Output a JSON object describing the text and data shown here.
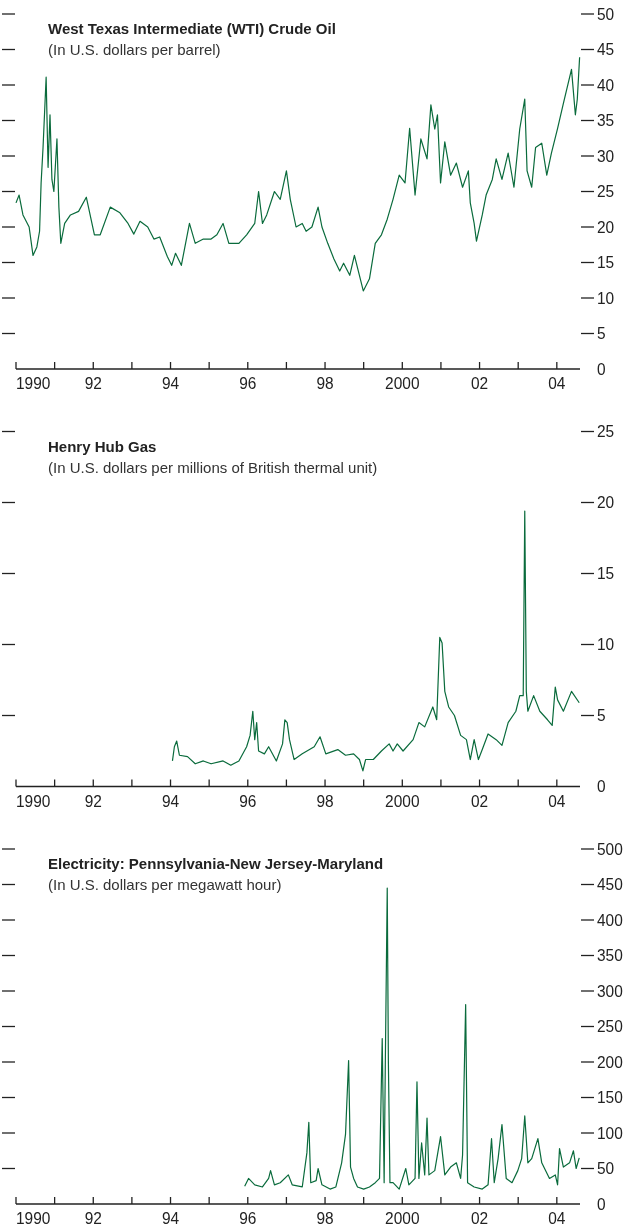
{
  "chart_data": [
    {
      "type": "line",
      "title": "West Texas Intermediate (WTI) Crude Oil",
      "subtitle": "(In U.S. dollars per barrel)",
      "color": "#0a6b3c",
      "x": [
        1990,
        1990.08,
        1990.18,
        1990.34,
        1990.44,
        1990.54,
        1990.61,
        1990.65,
        1990.7,
        1990.78,
        1990.83,
        1990.88,
        1990.93,
        1990.98,
        1991.06,
        1991.11,
        1991.16,
        1991.26,
        1991.41,
        1991.62,
        1991.82,
        1992.03,
        1992.18,
        1992.44,
        1992.69,
        1992.9,
        1993.05,
        1993.21,
        1993.41,
        1993.57,
        1993.72,
        1993.92,
        1994.03,
        1994.13,
        1994.28,
        1994.49,
        1994.64,
        1994.85,
        1995.05,
        1995.2,
        1995.36,
        1995.51,
        1995.77,
        1995.97,
        1996.18,
        1996.28,
        1996.38,
        1996.49,
        1996.69,
        1996.84,
        1997,
        1997.1,
        1997.25,
        1997.41,
        1997.51,
        1997.66,
        1997.82,
        1997.92,
        1998.07,
        1998.23,
        1998.38,
        1998.48,
        1998.64,
        1998.76,
        1998.89,
        1998.99,
        1999.15,
        1999.3,
        1999.46,
        1999.61,
        1999.76,
        1999.92,
        2000.07,
        2000.19,
        2000.33,
        2000.48,
        2000.64,
        2000.74,
        2000.84,
        2000.91,
        2000.99,
        2001.1,
        2001.25,
        2001.4,
        2001.56,
        2001.71,
        2001.76,
        2001.86,
        2001.92,
        2002.07,
        2002.17,
        2002.33,
        2002.43,
        2002.58,
        2002.74,
        2002.89,
        2003.04,
        2003.17,
        2003.23,
        2003.35,
        2003.45,
        2003.61,
        2003.74,
        2003.86,
        2004.02,
        2004.17,
        2004.38,
        2004.48,
        2004.53,
        2004.59
      ],
      "values": [
        23.4,
        24.5,
        21.7,
        20,
        16,
        17.2,
        19.4,
        26.2,
        31.2,
        41.1,
        28.4,
        35.8,
        26.7,
        25,
        32.4,
        22.8,
        17.7,
        20.5,
        21.7,
        22.2,
        24.2,
        18.9,
        18.9,
        22.8,
        22,
        20.5,
        19,
        20.8,
        20,
        18.3,
        18.6,
        15.8,
        14.6,
        16.3,
        14.6,
        20.5,
        17.7,
        18.3,
        18.3,
        18.9,
        20.5,
        17.7,
        17.7,
        18.9,
        20.5,
        25,
        20.5,
        21.7,
        25,
        23.9,
        27.9,
        23.9,
        20,
        20.5,
        19.4,
        20,
        22.8,
        20,
        17.7,
        15.5,
        13.8,
        14.9,
        13.2,
        16,
        13.2,
        11,
        12.7,
        17.7,
        18.9,
        21.1,
        23.9,
        27.3,
        26.2,
        33.9,
        24.5,
        32.4,
        29.6,
        37.2,
        33.8,
        35.8,
        26.2,
        32,
        27.3,
        29,
        25.6,
        27.9,
        23.4,
        20.5,
        18,
        21.7,
        24.5,
        26.7,
        29.6,
        26.7,
        30.4,
        25.6,
        33.8,
        38,
        27.9,
        25.6,
        31.2,
        31.8,
        27.3,
        30.4,
        33.9,
        37.4,
        42.2,
        35.8,
        38,
        43.9
      ],
      "xlim": [
        1990,
        2004.6
      ],
      "xticks": [
        {
          "value": 1990,
          "label": "1990"
        },
        {
          "value": 1991,
          "label": null
        },
        {
          "value": 1992,
          "label": "92"
        },
        {
          "value": 1993,
          "label": null
        },
        {
          "value": 1994,
          "label": "94"
        },
        {
          "value": 1995,
          "label": null
        },
        {
          "value": 1996,
          "label": "96"
        },
        {
          "value": 1997,
          "label": null
        },
        {
          "value": 1998,
          "label": "98"
        },
        {
          "value": 1999,
          "label": null
        },
        {
          "value": 2000,
          "label": "2000"
        },
        {
          "value": 2001,
          "label": null
        },
        {
          "value": 2002,
          "label": "02"
        },
        {
          "value": 2003,
          "label": null
        },
        {
          "value": 2004,
          "label": "04"
        }
      ],
      "ylim": [
        0,
        50
      ],
      "yticks": [
        0,
        5,
        10,
        15,
        20,
        25,
        30,
        35,
        40,
        45,
        50
      ]
    },
    {
      "type": "line",
      "title": "Henry Hub Gas",
      "subtitle": "(In U.S. dollars per millions of British thermal unit)",
      "color": "#0a6b3c",
      "x": [
        1994.05,
        1994.1,
        1994.16,
        1994.23,
        1994.44,
        1994.64,
        1994.85,
        1995.05,
        1995.36,
        1995.56,
        1995.77,
        1995.97,
        1996.06,
        1996.13,
        1996.18,
        1996.23,
        1996.28,
        1996.43,
        1996.54,
        1996.74,
        1996.9,
        1996.96,
        1997.02,
        1997.08,
        1997.2,
        1997.41,
        1997.72,
        1997.87,
        1998.02,
        1998.33,
        1998.53,
        1998.74,
        1998.89,
        1998.98,
        1999.05,
        1999.25,
        1999.46,
        1999.66,
        1999.76,
        1999.87,
        2000.02,
        2000.28,
        2000.43,
        2000.58,
        2000.79,
        2000.89,
        2000.97,
        2001.03,
        2001.1,
        2001.2,
        2001.35,
        2001.51,
        2001.66,
        2001.76,
        2001.86,
        2001.97,
        2002.07,
        2002.22,
        2002.43,
        2002.58,
        2002.74,
        2002.94,
        2003.04,
        2003.13,
        2003.17,
        2003.21,
        2003.25,
        2003.4,
        2003.56,
        2003.76,
        2003.88,
        2003.96,
        2004.02,
        2004.17,
        2004.38,
        2004.58
      ],
      "values": [
        1.8,
        2.8,
        3.2,
        2.2,
        2.1,
        1.6,
        1.8,
        1.6,
        1.8,
        1.5,
        1.8,
        2.8,
        3.6,
        5.3,
        3.3,
        4.5,
        2.5,
        2.3,
        2.8,
        1.8,
        3,
        4.7,
        4.5,
        3.3,
        1.9,
        2.3,
        2.8,
        3.5,
        2.3,
        2.6,
        2.2,
        2.3,
        1.9,
        1.1,
        1.9,
        1.9,
        2.5,
        3,
        2.5,
        3,
        2.5,
        3.3,
        4.5,
        4.2,
        5.6,
        4.7,
        10.5,
        10.1,
        6.7,
        5.6,
        5,
        3.6,
        3.3,
        1.9,
        3.3,
        1.9,
        2.6,
        3.7,
        3.3,
        2.9,
        4.5,
        5.3,
        6.4,
        6.4,
        19.4,
        6.7,
        5.3,
        6.4,
        5.3,
        4.7,
        4.3,
        7,
        6.1,
        5.3,
        6.7,
        5.9
      ],
      "xlim": [
        1990,
        2004.6
      ],
      "xticks": [
        {
          "value": 1990,
          "label": "1990"
        },
        {
          "value": 1991,
          "label": null
        },
        {
          "value": 1992,
          "label": "92"
        },
        {
          "value": 1993,
          "label": null
        },
        {
          "value": 1994,
          "label": "94"
        },
        {
          "value": 1995,
          "label": null
        },
        {
          "value": 1996,
          "label": "96"
        },
        {
          "value": 1997,
          "label": null
        },
        {
          "value": 1998,
          "label": "98"
        },
        {
          "value": 1999,
          "label": null
        },
        {
          "value": 2000,
          "label": "2000"
        },
        {
          "value": 2001,
          "label": null
        },
        {
          "value": 2002,
          "label": "02"
        },
        {
          "value": 2003,
          "label": null
        },
        {
          "value": 2004,
          "label": "04"
        }
      ],
      "ylim": [
        0,
        25
      ],
      "yticks": [
        0,
        5,
        10,
        15,
        20,
        25
      ]
    },
    {
      "type": "line",
      "title": "Electricity: Pennsylvania-New Jersey-Maryland",
      "subtitle": "(In U.S. dollars per megawatt hour)",
      "color": "#0a6b3c",
      "x": [
        1995.92,
        1996.02,
        1996.18,
        1996.38,
        1996.54,
        1996.59,
        1996.69,
        1996.84,
        1997.05,
        1997.15,
        1997.41,
        1997.53,
        1997.58,
        1997.63,
        1997.77,
        1997.82,
        1997.92,
        1998.13,
        1998.28,
        1998.43,
        1998.53,
        1998.61,
        1998.66,
        1998.74,
        1998.84,
        1999,
        1999.15,
        1999.3,
        1999.41,
        1999.48,
        1999.53,
        1999.56,
        1999.61,
        1999.64,
        1999.68,
        1999.76,
        1999.92,
        2000.09,
        2000.17,
        2000.33,
        2000.38,
        2000.43,
        2000.5,
        2000.58,
        2000.64,
        2000.69,
        2000.84,
        2000.99,
        2001.1,
        2001.25,
        2001.4,
        2001.51,
        2001.56,
        2001.64,
        2001.69,
        2001.86,
        2002.07,
        2002.22,
        2002.31,
        2002.38,
        2002.48,
        2002.58,
        2002.69,
        2002.84,
        2002.99,
        2003.09,
        2003.17,
        2003.25,
        2003.35,
        2003.51,
        2003.61,
        2003.81,
        2003.96,
        2004.02,
        2004.07,
        2004.17,
        2004.33,
        2004.43,
        2004.5,
        2004.58
      ],
      "values": [
        25,
        36,
        27,
        24,
        36,
        47,
        27,
        30,
        41,
        27,
        24,
        72,
        115,
        30,
        33,
        50,
        27,
        21,
        24,
        58,
        98,
        202,
        52,
        36,
        24,
        21,
        24,
        30,
        36,
        233,
        30,
        196,
        445,
        199,
        30,
        30,
        21,
        50,
        27,
        36,
        172,
        36,
        86,
        41,
        121,
        41,
        47,
        95,
        41,
        52,
        58,
        36,
        69,
        281,
        30,
        24,
        21,
        27,
        92,
        30,
        64,
        112,
        36,
        30,
        47,
        64,
        124,
        58,
        64,
        92,
        58,
        36,
        41,
        27,
        78,
        52,
        58,
        75,
        50,
        65
      ],
      "xlim": [
        1990,
        2004.6
      ],
      "xticks": [
        {
          "value": 1990,
          "label": "1990"
        },
        {
          "value": 1991,
          "label": null
        },
        {
          "value": 1992,
          "label": "92"
        },
        {
          "value": 1993,
          "label": null
        },
        {
          "value": 1994,
          "label": "94"
        },
        {
          "value": 1995,
          "label": null
        },
        {
          "value": 1996,
          "label": "96"
        },
        {
          "value": 1997,
          "label": null
        },
        {
          "value": 1998,
          "label": "98"
        },
        {
          "value": 1999,
          "label": null
        },
        {
          "value": 2000,
          "label": "2000"
        },
        {
          "value": 2001,
          "label": null
        },
        {
          "value": 2002,
          "label": "02"
        },
        {
          "value": 2003,
          "label": null
        },
        {
          "value": 2004,
          "label": "04"
        }
      ],
      "ylim": [
        0,
        500
      ],
      "yticks": [
        0,
        50,
        100,
        150,
        200,
        250,
        300,
        350,
        400,
        450,
        500
      ]
    }
  ]
}
